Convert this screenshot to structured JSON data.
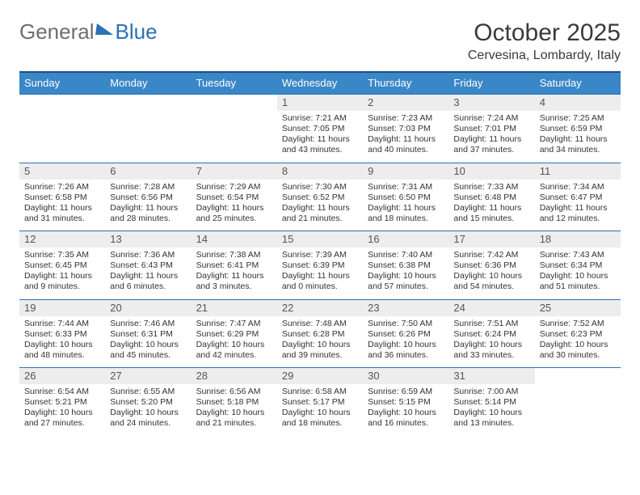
{
  "logo": {
    "word1": "General",
    "word2": "Blue"
  },
  "title": "October 2025",
  "location": "Cervesina, Lombardy, Italy",
  "dayNames": [
    "Sunday",
    "Monday",
    "Tuesday",
    "Wednesday",
    "Thursday",
    "Friday",
    "Saturday"
  ],
  "style": {
    "headerBg": "#3a87c7",
    "borderColor": "#2a71b8",
    "dnumBg": "#ededed",
    "pageBg": "#ffffff"
  },
  "weeks": [
    [
      {
        "blank": true
      },
      {
        "blank": true
      },
      {
        "blank": true
      },
      {
        "n": "1",
        "sr": "7:21 AM",
        "ss": "7:05 PM",
        "dl": "11 hours and 43 minutes."
      },
      {
        "n": "2",
        "sr": "7:23 AM",
        "ss": "7:03 PM",
        "dl": "11 hours and 40 minutes."
      },
      {
        "n": "3",
        "sr": "7:24 AM",
        "ss": "7:01 PM",
        "dl": "11 hours and 37 minutes."
      },
      {
        "n": "4",
        "sr": "7:25 AM",
        "ss": "6:59 PM",
        "dl": "11 hours and 34 minutes."
      }
    ],
    [
      {
        "n": "5",
        "sr": "7:26 AM",
        "ss": "6:58 PM",
        "dl": "11 hours and 31 minutes."
      },
      {
        "n": "6",
        "sr": "7:28 AM",
        "ss": "6:56 PM",
        "dl": "11 hours and 28 minutes."
      },
      {
        "n": "7",
        "sr": "7:29 AM",
        "ss": "6:54 PM",
        "dl": "11 hours and 25 minutes."
      },
      {
        "n": "8",
        "sr": "7:30 AM",
        "ss": "6:52 PM",
        "dl": "11 hours and 21 minutes."
      },
      {
        "n": "9",
        "sr": "7:31 AM",
        "ss": "6:50 PM",
        "dl": "11 hours and 18 minutes."
      },
      {
        "n": "10",
        "sr": "7:33 AM",
        "ss": "6:48 PM",
        "dl": "11 hours and 15 minutes."
      },
      {
        "n": "11",
        "sr": "7:34 AM",
        "ss": "6:47 PM",
        "dl": "11 hours and 12 minutes."
      }
    ],
    [
      {
        "n": "12",
        "sr": "7:35 AM",
        "ss": "6:45 PM",
        "dl": "11 hours and 9 minutes."
      },
      {
        "n": "13",
        "sr": "7:36 AM",
        "ss": "6:43 PM",
        "dl": "11 hours and 6 minutes."
      },
      {
        "n": "14",
        "sr": "7:38 AM",
        "ss": "6:41 PM",
        "dl": "11 hours and 3 minutes."
      },
      {
        "n": "15",
        "sr": "7:39 AM",
        "ss": "6:39 PM",
        "dl": "11 hours and 0 minutes."
      },
      {
        "n": "16",
        "sr": "7:40 AM",
        "ss": "6:38 PM",
        "dl": "10 hours and 57 minutes."
      },
      {
        "n": "17",
        "sr": "7:42 AM",
        "ss": "6:36 PM",
        "dl": "10 hours and 54 minutes."
      },
      {
        "n": "18",
        "sr": "7:43 AM",
        "ss": "6:34 PM",
        "dl": "10 hours and 51 minutes."
      }
    ],
    [
      {
        "n": "19",
        "sr": "7:44 AM",
        "ss": "6:33 PM",
        "dl": "10 hours and 48 minutes."
      },
      {
        "n": "20",
        "sr": "7:46 AM",
        "ss": "6:31 PM",
        "dl": "10 hours and 45 minutes."
      },
      {
        "n": "21",
        "sr": "7:47 AM",
        "ss": "6:29 PM",
        "dl": "10 hours and 42 minutes."
      },
      {
        "n": "22",
        "sr": "7:48 AM",
        "ss": "6:28 PM",
        "dl": "10 hours and 39 minutes."
      },
      {
        "n": "23",
        "sr": "7:50 AM",
        "ss": "6:26 PM",
        "dl": "10 hours and 36 minutes."
      },
      {
        "n": "24",
        "sr": "7:51 AM",
        "ss": "6:24 PM",
        "dl": "10 hours and 33 minutes."
      },
      {
        "n": "25",
        "sr": "7:52 AM",
        "ss": "6:23 PM",
        "dl": "10 hours and 30 minutes."
      }
    ],
    [
      {
        "n": "26",
        "sr": "6:54 AM",
        "ss": "5:21 PM",
        "dl": "10 hours and 27 minutes."
      },
      {
        "n": "27",
        "sr": "6:55 AM",
        "ss": "5:20 PM",
        "dl": "10 hours and 24 minutes."
      },
      {
        "n": "28",
        "sr": "6:56 AM",
        "ss": "5:18 PM",
        "dl": "10 hours and 21 minutes."
      },
      {
        "n": "29",
        "sr": "6:58 AM",
        "ss": "5:17 PM",
        "dl": "10 hours and 18 minutes."
      },
      {
        "n": "30",
        "sr": "6:59 AM",
        "ss": "5:15 PM",
        "dl": "10 hours and 16 minutes."
      },
      {
        "n": "31",
        "sr": "7:00 AM",
        "ss": "5:14 PM",
        "dl": "10 hours and 13 minutes."
      },
      {
        "blank": true
      }
    ]
  ],
  "labels": {
    "sunrise": "Sunrise:",
    "sunset": "Sunset:",
    "daylight": "Daylight:"
  }
}
